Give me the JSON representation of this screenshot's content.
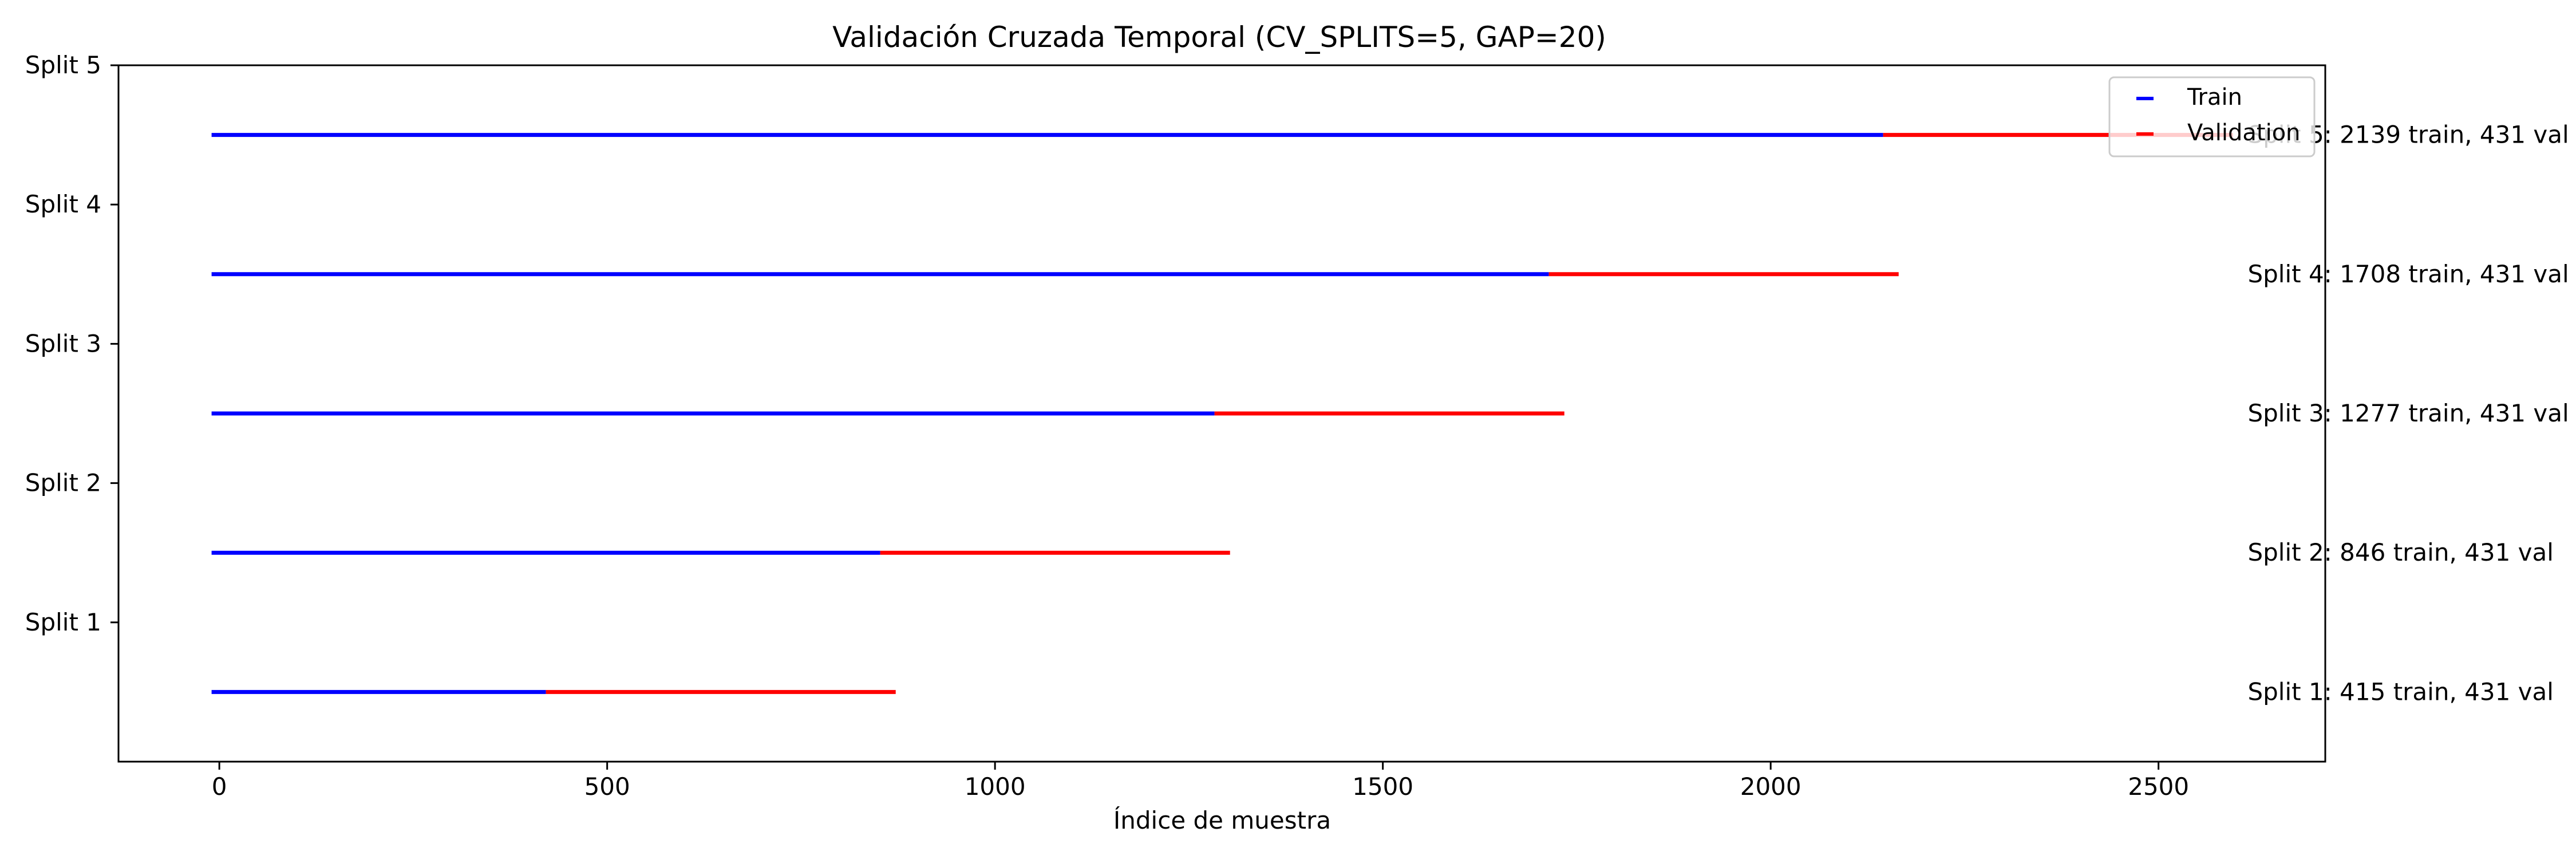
{
  "chart_data": {
    "type": "bar",
    "title": "Validación Cruzada Temporal (CV_SPLITS=5, GAP=20)",
    "xlabel": "Índice de muestra",
    "ylabel": "",
    "xlim": [
      -130,
      2715
    ],
    "x_ticks": [
      0,
      500,
      1000,
      1500,
      2000,
      2500
    ],
    "grid": false,
    "legend_position": "top-right",
    "categories": [
      "Split 1",
      "Split 2",
      "Split 3",
      "Split 4",
      "Split 5"
    ],
    "series": [
      {
        "name": "Train",
        "color": "#0000ff",
        "segments": [
          {
            "start": -10,
            "end": 421
          },
          {
            "start": -10,
            "end": 852
          },
          {
            "start": -10,
            "end": 1283
          },
          {
            "start": -10,
            "end": 1714
          },
          {
            "start": -10,
            "end": 2145
          }
        ]
      },
      {
        "name": "Validation",
        "color": "#ff0000",
        "segments": [
          {
            "start": 421,
            "end": 872
          },
          {
            "start": 852,
            "end": 1303
          },
          {
            "start": 1283,
            "end": 1734
          },
          {
            "start": 1714,
            "end": 2165
          },
          {
            "start": 2145,
            "end": 2596
          }
        ]
      }
    ],
    "annotations": [
      {
        "text": "Split 1: 415 train, 431 val",
        "x": 2615
      },
      {
        "text": "Split 2: 846 train, 431 val",
        "x": 2615
      },
      {
        "text": "Split 3: 1277 train, 431 val",
        "x": 2615
      },
      {
        "text": "Split 4: 1708 train, 431 val",
        "x": 2615
      },
      {
        "text": "Split 5: 2139 train, 431 val",
        "x": 2615
      }
    ]
  }
}
